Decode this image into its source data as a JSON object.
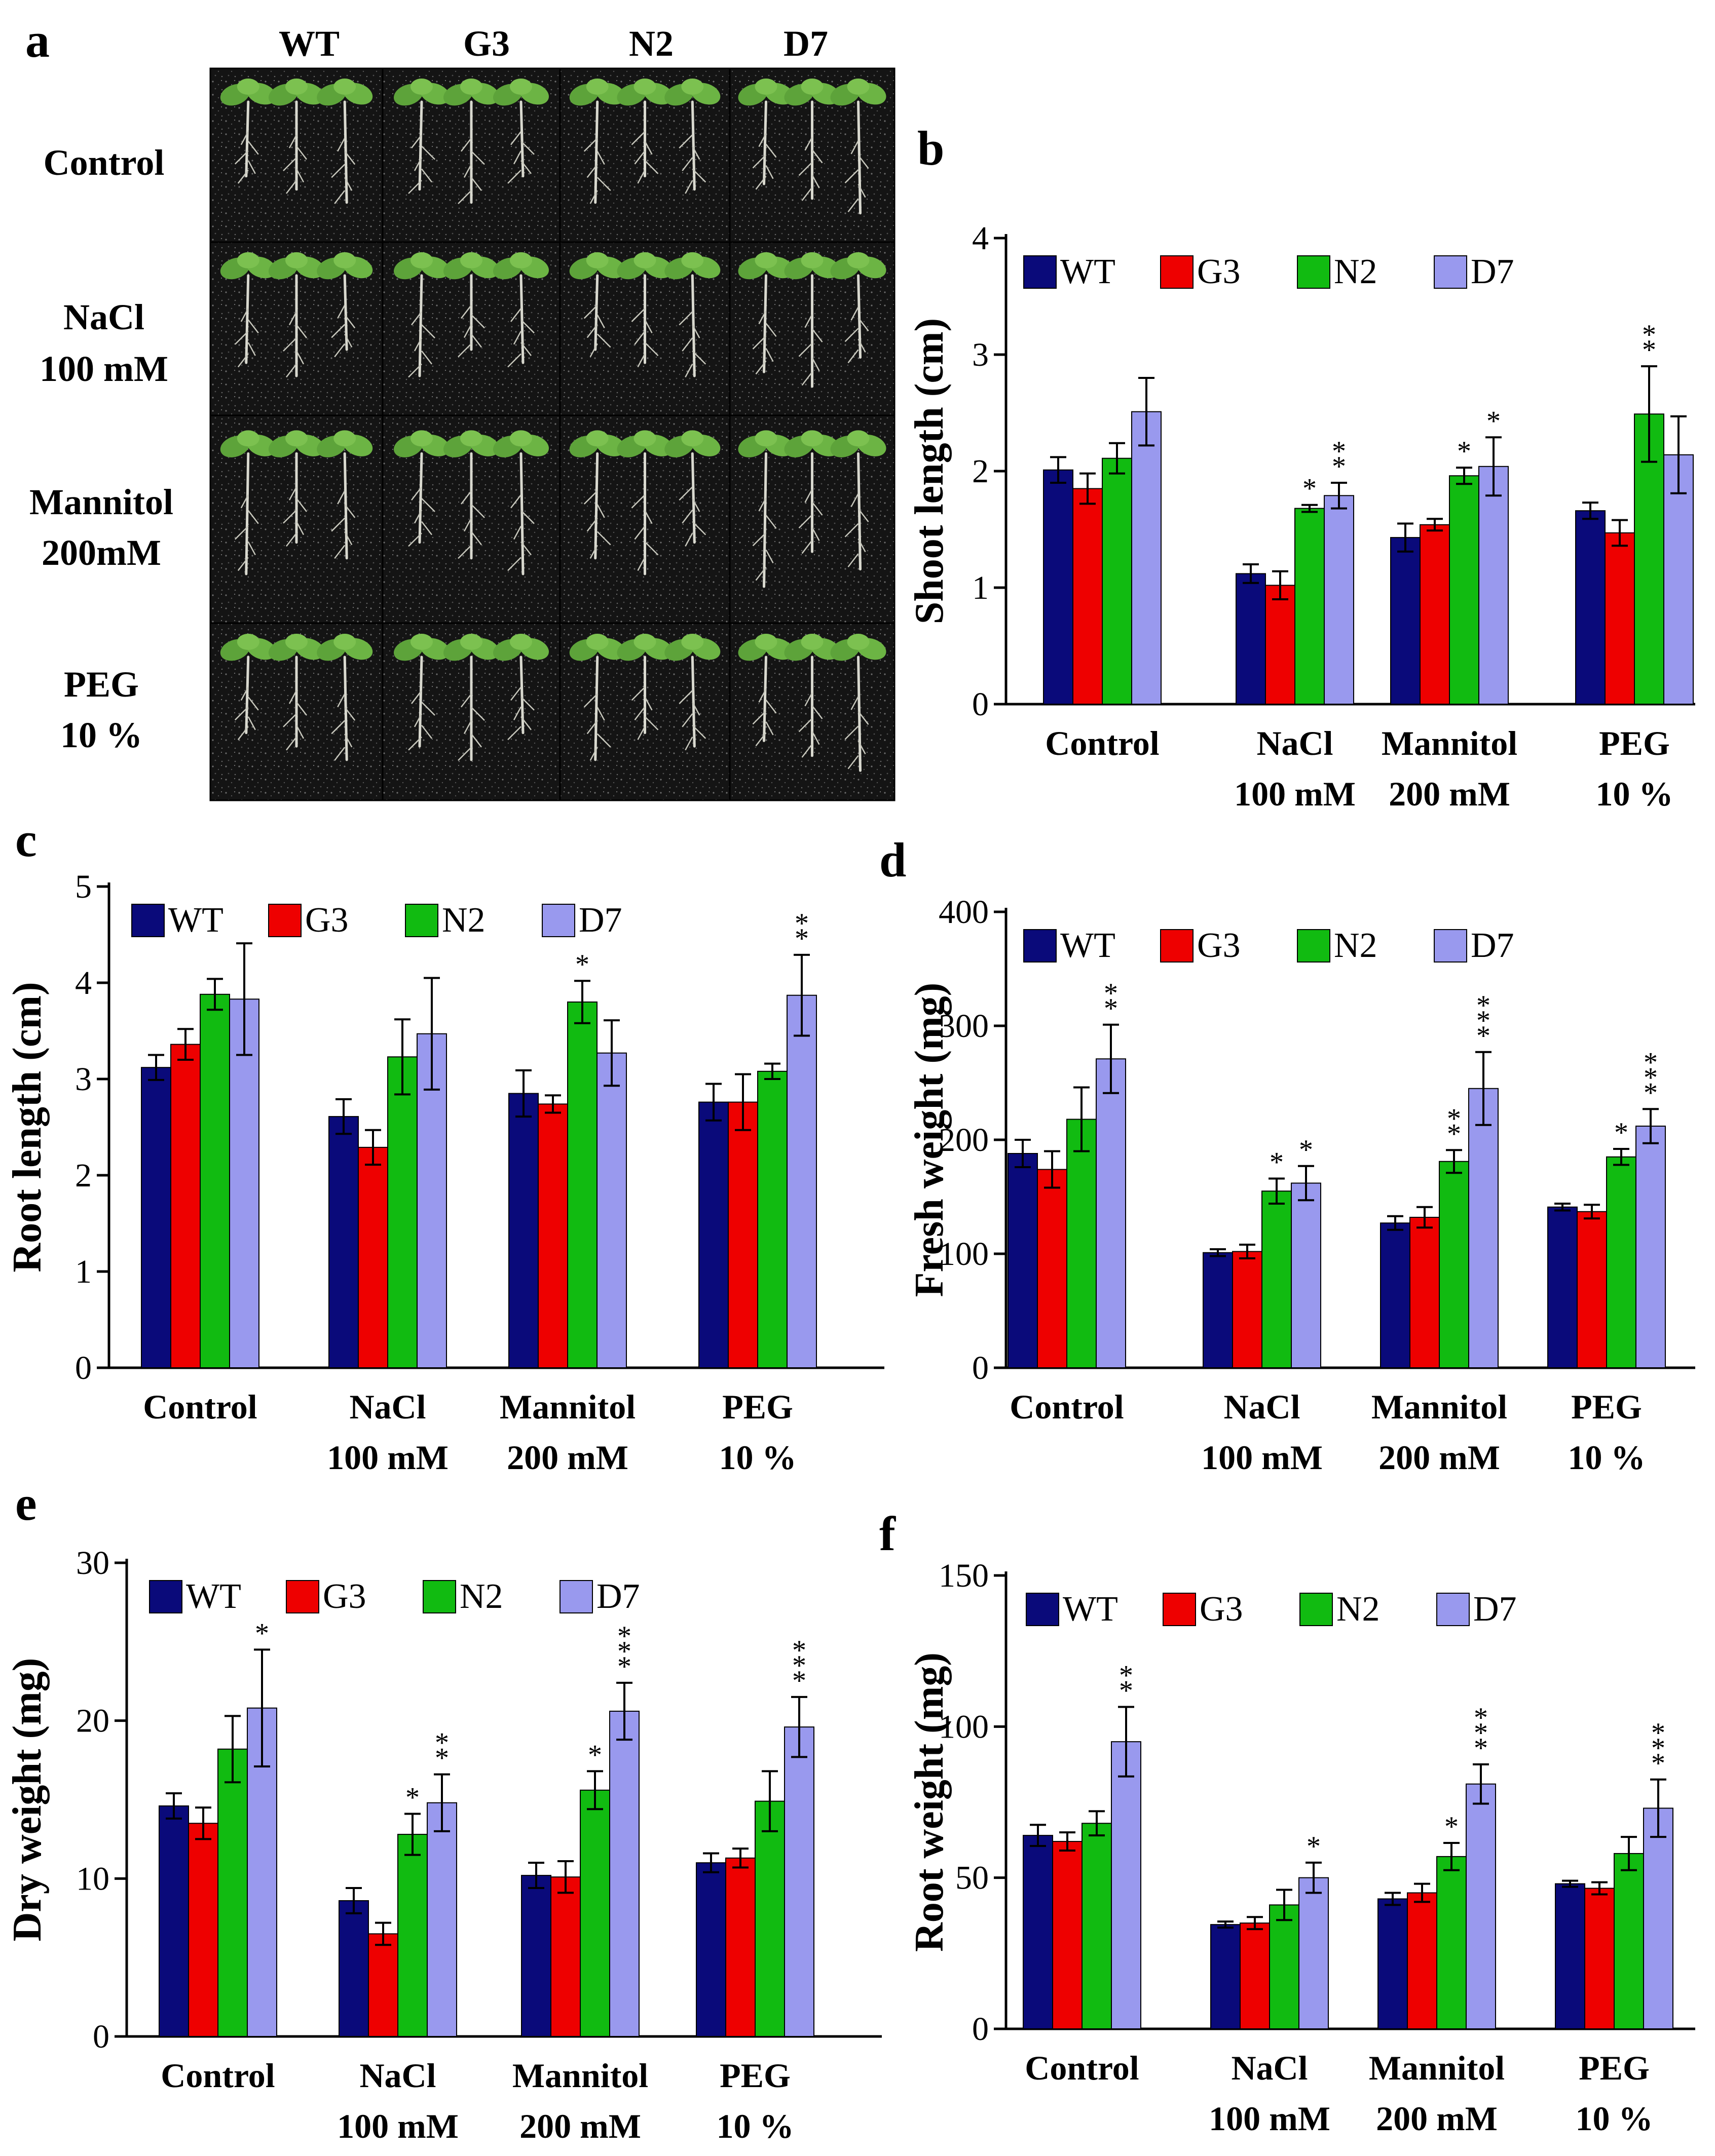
{
  "figure": {
    "colors": {
      "WT": "#0a0a7a",
      "G3": "#ee0000",
      "N2": "#11bb11",
      "D7": "#9999ee"
    },
    "photo_panel": {
      "label": "a",
      "column_headers": [
        "WT",
        "G3",
        "N2",
        "D7"
      ],
      "row_labels": [
        [
          "Control"
        ],
        [
          "NaCl",
          "100 mM"
        ],
        [
          "Mannitol",
          "200mM"
        ],
        [
          "PEG",
          "10 %"
        ]
      ]
    }
  },
  "chart_data": [
    {
      "panel": "b",
      "type": "bar",
      "ylabel": "Shoot length (cm)",
      "categories": [
        [
          "Control"
        ],
        [
          "NaCl",
          "100 mM"
        ],
        [
          "Mannitol",
          "200 mM"
        ],
        [
          "PEG",
          "10 %"
        ]
      ],
      "ylim": [
        0,
        4
      ],
      "yticks": [
        0,
        1,
        2,
        3,
        4
      ],
      "series": [
        {
          "name": "WT",
          "values": [
            2.01,
            1.12,
            1.43,
            1.66
          ],
          "errors": [
            0.11,
            0.08,
            0.12,
            0.07
          ],
          "sig": [
            "",
            "",
            "",
            ""
          ]
        },
        {
          "name": "G3",
          "values": [
            1.85,
            1.02,
            1.54,
            1.47
          ],
          "errors": [
            0.13,
            0.12,
            0.05,
            0.11
          ],
          "sig": [
            "",
            "",
            "",
            ""
          ]
        },
        {
          "name": "N2",
          "values": [
            2.11,
            1.68,
            1.96,
            2.49
          ],
          "errors": [
            0.13,
            0.03,
            0.07,
            0.41
          ],
          "sig": [
            "",
            "*",
            "*",
            "**"
          ]
        },
        {
          "name": "D7",
          "values": [
            2.51,
            1.79,
            2.04,
            2.14
          ],
          "errors": [
            0.29,
            0.11,
            0.25,
            0.33
          ],
          "sig": [
            "",
            "**",
            "*",
            ""
          ]
        }
      ]
    },
    {
      "panel": "c",
      "type": "bar",
      "ylabel": "Root length (cm)",
      "categories": [
        [
          "Control"
        ],
        [
          "NaCl",
          "100 mM"
        ],
        [
          "Mannitol",
          "200 mM"
        ],
        [
          "PEG",
          "10 %"
        ]
      ],
      "ylim": [
        0,
        5
      ],
      "yticks": [
        0,
        1,
        2,
        3,
        4,
        5
      ],
      "series": [
        {
          "name": "WT",
          "values": [
            3.12,
            2.61,
            2.85,
            2.76
          ],
          "errors": [
            0.13,
            0.18,
            0.24,
            0.19
          ],
          "sig": [
            "",
            "",
            "",
            ""
          ]
        },
        {
          "name": "G3",
          "values": [
            3.36,
            2.29,
            2.74,
            2.76
          ],
          "errors": [
            0.16,
            0.18,
            0.09,
            0.29
          ],
          "sig": [
            "",
            "",
            "",
            ""
          ]
        },
        {
          "name": "N2",
          "values": [
            3.88,
            3.23,
            3.8,
            3.08
          ],
          "errors": [
            0.16,
            0.39,
            0.22,
            0.08
          ],
          "sig": [
            "",
            "",
            "*",
            ""
          ]
        },
        {
          "name": "D7",
          "values": [
            3.83,
            3.47,
            3.27,
            3.87
          ],
          "errors": [
            0.58,
            0.58,
            0.34,
            0.42
          ],
          "sig": [
            "",
            "",
            "",
            "**"
          ]
        }
      ]
    },
    {
      "panel": "d",
      "type": "bar",
      "ylabel": "Fresh weight (mg)",
      "categories": [
        [
          "Control"
        ],
        [
          "NaCl",
          "100 mM"
        ],
        [
          "Mannitol",
          "200 mM"
        ],
        [
          "PEG",
          "10 %"
        ]
      ],
      "ylim": [
        0,
        400
      ],
      "yticks": [
        0,
        100,
        200,
        300,
        400
      ],
      "series": [
        {
          "name": "WT",
          "values": [
            188,
            101,
            127,
            141
          ],
          "errors": [
            12,
            3,
            6,
            3
          ],
          "sig": [
            "",
            "",
            "",
            ""
          ]
        },
        {
          "name": "G3",
          "values": [
            174,
            102,
            132,
            137
          ],
          "errors": [
            16,
            6,
            9,
            6
          ],
          "sig": [
            "",
            "",
            "",
            ""
          ]
        },
        {
          "name": "N2",
          "values": [
            218,
            155,
            181,
            185
          ],
          "errors": [
            28,
            11,
            10,
            7
          ],
          "sig": [
            "",
            "*",
            "**",
            "*"
          ]
        },
        {
          "name": "D7",
          "values": [
            271,
            162,
            245,
            212
          ],
          "errors": [
            30,
            15,
            32,
            15
          ],
          "sig": [
            "**",
            "*",
            "***",
            "***"
          ]
        }
      ]
    },
    {
      "panel": "e",
      "type": "bar",
      "ylabel": "Dry weight (mg)",
      "categories": [
        [
          "Control"
        ],
        [
          "NaCl",
          "100 mM"
        ],
        [
          "Mannitol",
          "200 mM"
        ],
        [
          "PEG",
          "10 %"
        ]
      ],
      "ylim": [
        0,
        30
      ],
      "yticks": [
        0,
        10,
        20,
        30
      ],
      "series": [
        {
          "name": "WT",
          "values": [
            14.6,
            8.6,
            10.2,
            11.0
          ],
          "errors": [
            0.8,
            0.8,
            0.8,
            0.6
          ],
          "sig": [
            "",
            "",
            "",
            ""
          ]
        },
        {
          "name": "G3",
          "values": [
            13.5,
            6.5,
            10.1,
            11.3
          ],
          "errors": [
            1.0,
            0.7,
            1.0,
            0.6
          ],
          "sig": [
            "",
            "",
            "",
            ""
          ]
        },
        {
          "name": "N2",
          "values": [
            18.2,
            12.8,
            15.6,
            14.9
          ],
          "errors": [
            2.1,
            1.3,
            1.2,
            1.9
          ],
          "sig": [
            "",
            "*",
            "*",
            ""
          ]
        },
        {
          "name": "D7",
          "values": [
            20.8,
            14.8,
            20.6,
            19.6
          ],
          "errors": [
            3.7,
            1.8,
            1.8,
            1.9
          ],
          "sig": [
            "*",
            "**",
            "***",
            "***"
          ]
        }
      ]
    },
    {
      "panel": "f",
      "type": "bar",
      "ylabel": "Root weight (mg)",
      "categories": [
        [
          "Control"
        ],
        [
          "NaCl",
          "100 mM"
        ],
        [
          "Mannitol",
          "200 mM"
        ],
        [
          "PEG",
          "10 %"
        ]
      ],
      "ylim": [
        0,
        150
      ],
      "yticks": [
        0,
        50,
        100,
        150
      ],
      "series": [
        {
          "name": "WT",
          "values": [
            64,
            34.5,
            43,
            48
          ],
          "errors": [
            3.5,
            1,
            2,
            1
          ],
          "sig": [
            "",
            "",
            "",
            ""
          ]
        },
        {
          "name": "G3",
          "values": [
            62,
            35,
            45,
            46.5
          ],
          "errors": [
            3,
            2,
            3,
            2
          ],
          "sig": [
            "",
            "",
            "",
            ""
          ]
        },
        {
          "name": "N2",
          "values": [
            68,
            41,
            57,
            58
          ],
          "errors": [
            4,
            5,
            4.5,
            5.5
          ],
          "sig": [
            "",
            "",
            "*",
            ""
          ]
        },
        {
          "name": "D7",
          "values": [
            95,
            50,
            81,
            73
          ],
          "errors": [
            11.5,
            5,
            6.5,
            9.5
          ],
          "sig": [
            "**",
            "*",
            "***",
            "***"
          ]
        }
      ]
    }
  ]
}
